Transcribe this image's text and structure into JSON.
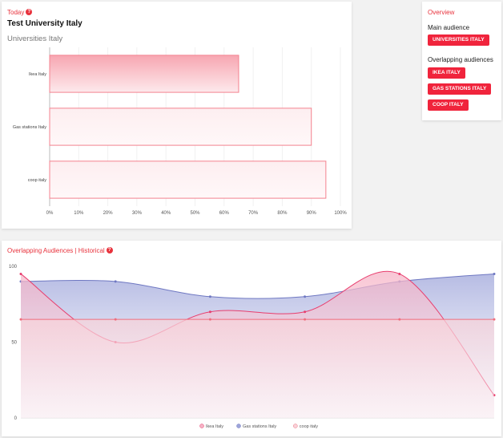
{
  "today": {
    "label": "Today",
    "help": "?",
    "title": "Test University Italy",
    "subtitle": "Universities Italy"
  },
  "overview": {
    "label": "Overview",
    "main_audience_label": "Main audience",
    "main_audience": "UNIVERSITIES ITALY",
    "overlapping_label": "Overlapping audiences",
    "overlapping": [
      "IKEA ITALY",
      "GAS STATIONS ITALY",
      "COOP ITALY"
    ]
  },
  "historical": {
    "label": "Overlapping Audiences | Historical",
    "help": "?"
  },
  "colors": {
    "accent": "#e8323c",
    "ikea": "#e83e6e",
    "gas": "#6f78c2",
    "coop": "#ee6e7e"
  },
  "chart_data": [
    {
      "type": "bar",
      "orientation": "horizontal",
      "categories": [
        "Ikea Italy",
        "Gas stations Italy",
        "coop italy"
      ],
      "values": [
        65,
        90,
        95
      ],
      "xlim": [
        0,
        100
      ],
      "xticks": [
        "0%",
        "10%",
        "20%",
        "30%",
        "40%",
        "50%",
        "60%",
        "70%",
        "80%",
        "90%",
        "100%"
      ],
      "grid": true
    },
    {
      "type": "area",
      "ylim": [
        0,
        100
      ],
      "yticks": [
        "0",
        "50",
        "100"
      ],
      "legend_position": "bottom",
      "series": [
        {
          "name": "Ikea Italy",
          "values": [
            95,
            50,
            70,
            70,
            95,
            15
          ]
        },
        {
          "name": "Gas stations Italy",
          "values": [
            90,
            90,
            80,
            80,
            90,
            95
          ]
        },
        {
          "name": "coop italy",
          "values": [
            65,
            65,
            65,
            65,
            65,
            65
          ]
        }
      ]
    }
  ]
}
